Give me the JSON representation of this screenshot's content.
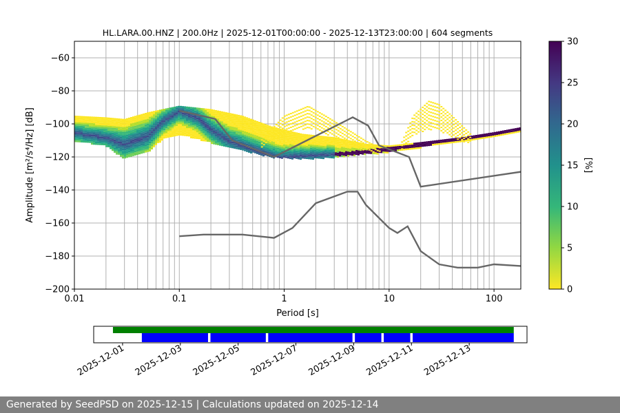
{
  "chart_data": [
    {
      "type": "heatmap",
      "title": "HL.LARA.00.HNZ | 200.0Hz | 2025-12-01T00:00:00 - 2025-12-13T23:00:00 | 604 segments",
      "xlabel": "Period [s]",
      "ylabel": "Amplitude [m²/s⁴/Hz] [dB]",
      "x_scale": "log",
      "xlim": [
        0.01,
        180
      ],
      "ylim": [
        -200,
        -50
      ],
      "x_ticks": [
        "0.01",
        "0.1",
        "1",
        "10",
        "100"
      ],
      "y_ticks": [
        "−60",
        "−80",
        "−100",
        "−120",
        "−140",
        "−160",
        "−180",
        "−200"
      ],
      "grid": true,
      "colormap": "viridis_r",
      "colorbar": {
        "label": "[%]",
        "range": [
          0,
          30
        ],
        "ticks": [
          "0",
          "5",
          "10",
          "15",
          "20",
          "25",
          "30"
        ]
      },
      "density_mode_curve": {
        "x": [
          0.01,
          0.02,
          0.03,
          0.05,
          0.07,
          0.1,
          0.15,
          0.2,
          0.3,
          0.5,
          0.7,
          0.9,
          1.5,
          3,
          5,
          7,
          10,
          20,
          50,
          100,
          180
        ],
        "y": [
          -105,
          -108,
          -112,
          -107,
          -98,
          -92,
          -96,
          -103,
          -110,
          -115,
          -118,
          -120,
          -119,
          -118,
          -117,
          -116,
          -115,
          -112,
          -108,
          -105,
          -102
        ]
      },
      "density_spread": {
        "x": [
          0.01,
          0.02,
          0.03,
          0.05,
          0.07,
          0.1,
          0.2,
          0.4,
          0.8,
          1.5,
          3,
          6,
          10,
          20,
          50,
          100,
          180
        ],
        "upper": [
          -95,
          -96,
          -97,
          -93,
          -91,
          -89,
          -91,
          -95,
          -102,
          -106,
          -108,
          -112,
          -113,
          -111,
          -108,
          -105,
          -102
        ],
        "lower": [
          -110,
          -113,
          -121,
          -117,
          -109,
          -106,
          -111,
          -116,
          -120,
          -121,
          -120,
          -118,
          -117,
          -114,
          -111,
          -108,
          -105
        ]
      },
      "secondary_lobes": [
        {
          "x": [
            0.6,
            1,
            1.7,
            2.5,
            4,
            6,
            8
          ],
          "upper": [
            -110,
            -95,
            -89,
            -95,
            -103,
            -110,
            -114
          ],
          "lower": [
            -114,
            -106,
            -102,
            -106,
            -111,
            -116,
            -118
          ]
        },
        {
          "x": [
            13,
            17,
            24,
            30,
            40,
            60
          ],
          "upper": [
            -112,
            -95,
            -86,
            -88,
            -95,
            -106
          ],
          "lower": [
            -116,
            -107,
            -103,
            -104,
            -108,
            -112
          ]
        }
      ],
      "series": [
        {
          "name": "",
          "x": [
            0.1,
            0.22,
            0.32,
            0.8,
            4.5,
            6.3,
            8,
            15.5,
            20,
            180
          ],
          "y": [
            -92,
            -97,
            -110,
            -120,
            -96,
            -101,
            -113,
            -120,
            -138,
            -129
          ]
        },
        {
          "name": "",
          "x": [
            0.1,
            0.17,
            0.22,
            0.4,
            0.8,
            1.2,
            2,
            4,
            5,
            6,
            10,
            12,
            15,
            20,
            30,
            45,
            70,
            100,
            180
          ],
          "y": [
            -168,
            -167,
            -167,
            -167,
            -169,
            -163,
            -148,
            -141,
            -141,
            -149,
            -163,
            -166,
            -162,
            -177,
            -185,
            -187,
            -187,
            -185,
            -186
          ]
        }
      ]
    },
    {
      "type": "timeline",
      "x_ticks": [
        "2025-12-01",
        "2025-12-03",
        "2025-12-05",
        "2025-12-07",
        "2025-12-09",
        "2025-12-11",
        "2025-12-13"
      ],
      "xlim": [
        "2025-11-30",
        "2025-12-15"
      ],
      "available": {
        "color": "#008000",
        "segments": [
          [
            "2025-11-30T16:00",
            "2025-12-14T13:00"
          ]
        ]
      },
      "used": {
        "color": "#0000ff",
        "segments": [
          [
            "2025-12-01T16:00",
            "2025-12-03T23:00"
          ],
          [
            "2025-12-04T01:00",
            "2025-12-05T23:00"
          ],
          [
            "2025-12-06T01:00",
            "2025-12-08T23:00"
          ],
          [
            "2025-12-09T01:00",
            "2025-12-09T23:00"
          ],
          [
            "2025-12-10T01:00",
            "2025-12-10T23:00"
          ],
          [
            "2025-12-11T01:00",
            "2025-12-14T13:00"
          ]
        ]
      }
    }
  ],
  "footer": "Generated by SeedPSD on 2025-12-15 | Calculations updated on 2025-12-14"
}
